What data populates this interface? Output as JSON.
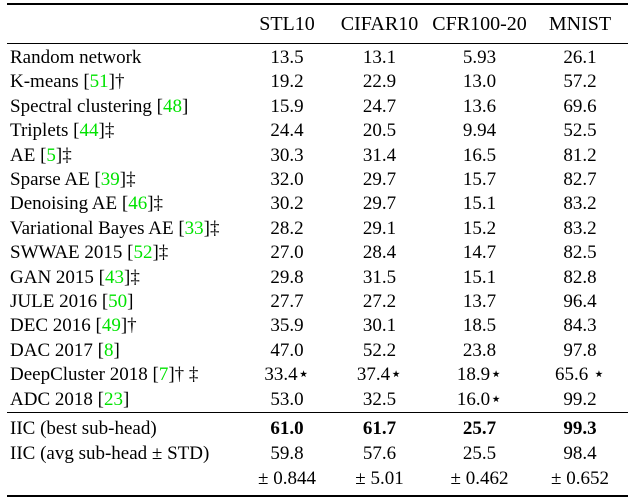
{
  "table": {
    "citation_color": "#00e300",
    "columns": [
      "STL10",
      "CIFAR10",
      "CFR100-20",
      "MNIST"
    ],
    "rows": [
      {
        "prefix": "Random network",
        "cite": "",
        "suffix": "",
        "values": [
          "13.5",
          "13.1",
          "5.93",
          "26.1"
        ]
      },
      {
        "prefix": "K-means [",
        "cite": "51",
        "suffix": "]†",
        "values": [
          "19.2",
          "22.9",
          "13.0",
          "57.2"
        ]
      },
      {
        "prefix": "Spectral clustering [",
        "cite": "48",
        "suffix": "]",
        "values": [
          "15.9",
          "24.7",
          "13.6",
          "69.6"
        ]
      },
      {
        "prefix": "Triplets [",
        "cite": "44",
        "suffix": "]‡",
        "values": [
          "24.4",
          "20.5",
          "9.94",
          "52.5"
        ]
      },
      {
        "prefix": "AE [",
        "cite": "5",
        "suffix": "]‡",
        "values": [
          "30.3",
          "31.4",
          "16.5",
          "81.2"
        ]
      },
      {
        "prefix": "Sparse AE [",
        "cite": "39",
        "suffix": "]‡",
        "values": [
          "32.0",
          "29.7",
          "15.7",
          "82.7"
        ]
      },
      {
        "prefix": "Denoising AE [",
        "cite": "46",
        "suffix": "]‡",
        "values": [
          "30.2",
          "29.7",
          "15.1",
          "83.2"
        ]
      },
      {
        "prefix": "Variational Bayes AE [",
        "cite": "33",
        "suffix": "]‡",
        "values": [
          "28.2",
          "29.1",
          "15.2",
          "83.2"
        ]
      },
      {
        "prefix": "SWWAE 2015 [",
        "cite": "52",
        "suffix": "]‡",
        "values": [
          "27.0",
          "28.4",
          "14.7",
          "82.5"
        ]
      },
      {
        "prefix": "GAN 2015 [",
        "cite": "43",
        "suffix": "]‡",
        "values": [
          "29.8",
          "31.5",
          "15.1",
          "82.8"
        ]
      },
      {
        "prefix": "JULE 2016 [",
        "cite": "50",
        "suffix": "]",
        "values": [
          "27.7",
          "27.2",
          "13.7",
          "96.4"
        ]
      },
      {
        "prefix": "DEC 2016 [",
        "cite": "49",
        "suffix": "]†",
        "values": [
          "35.9",
          "30.1",
          "18.5",
          "84.3"
        ]
      },
      {
        "prefix": "DAC 2017 [",
        "cite": "8",
        "suffix": "]",
        "values": [
          "47.0",
          "52.2",
          "23.8",
          "97.8"
        ]
      },
      {
        "prefix": "DeepCluster 2018 [",
        "cite": "7",
        "suffix": "]† ‡",
        "values": [
          "33.4⋆",
          "37.4⋆",
          "18.9⋆",
          "65.6 ⋆"
        ]
      },
      {
        "prefix": "ADC 2018 [",
        "cite": "23",
        "suffix": "]",
        "values": [
          "53.0",
          "32.5",
          "16.0⋆",
          "99.2"
        ]
      }
    ],
    "iic_rows": [
      {
        "label": "IIC (best sub-head)",
        "bold_values": true,
        "values": [
          "61.0",
          "61.7",
          "25.7",
          "99.3"
        ]
      },
      {
        "label": "IIC (avg sub-head ± STD)",
        "bold_values": false,
        "values": [
          "59.8",
          "57.6",
          "25.5",
          "98.4"
        ]
      },
      {
        "label": "",
        "bold_values": false,
        "values": [
          "± 0.844",
          "± 5.01",
          "± 0.462",
          "± 0.652"
        ]
      }
    ]
  }
}
